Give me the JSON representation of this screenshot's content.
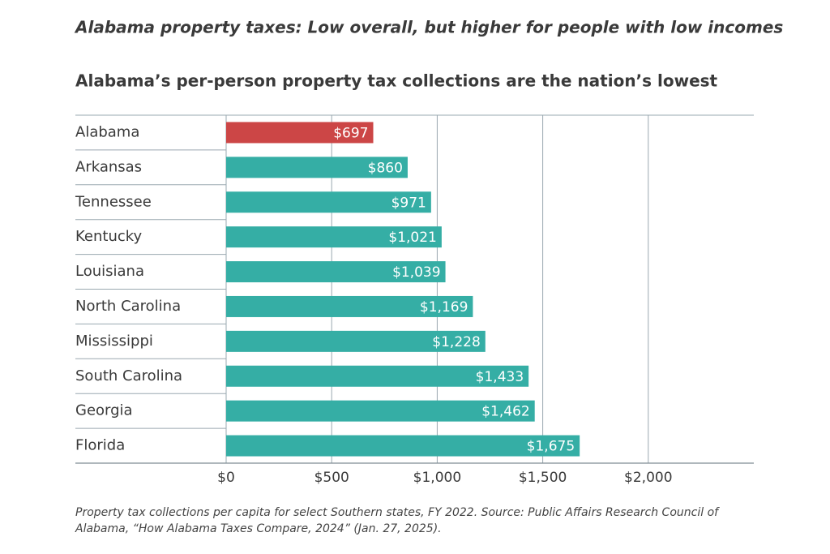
{
  "chart_data": {
    "type": "bar",
    "orientation": "horizontal",
    "title": "Alabama property taxes: Low overall, but higher for people with low incomes",
    "subtitle": "Alabama’s per-person property tax collections are the nation’s lowest",
    "categories": [
      "Alabama",
      "Arkansas",
      "Tennessee",
      "Kentucky",
      "Louisiana",
      "North Carolina",
      "Mississippi",
      "South Carolina",
      "Georgia",
      "Florida"
    ],
    "values": [
      697,
      860,
      971,
      1021,
      1039,
      1169,
      1228,
      1433,
      1462,
      1675
    ],
    "value_labels": [
      "$697",
      "$860",
      "$971",
      "$1,021",
      "$1,039",
      "$1,169",
      "$1,228",
      "$1,433",
      "$1,462",
      "$1,675"
    ],
    "colors": [
      "#cc4646",
      "#35aea5",
      "#35aea5",
      "#35aea5",
      "#35aea5",
      "#35aea5",
      "#35aea5",
      "#35aea5",
      "#35aea5",
      "#35aea5"
    ],
    "xlim": [
      0,
      2500
    ],
    "xticks": [
      {
        "value": 0,
        "label": "$0"
      },
      {
        "value": 500,
        "label": "$500"
      },
      {
        "value": 1000,
        "label": "$1,000"
      },
      {
        "value": 1500,
        "label": "$1,500"
      },
      {
        "value": 2000,
        "label": "$2,000"
      }
    ],
    "grid": true,
    "note": "Property tax collections per capita for select Southern states, FY 2022. Source: Public Affairs Research Council of Alabama, “How Alabama Taxes Compare, 2024” (Jan. 27, 2025)."
  }
}
